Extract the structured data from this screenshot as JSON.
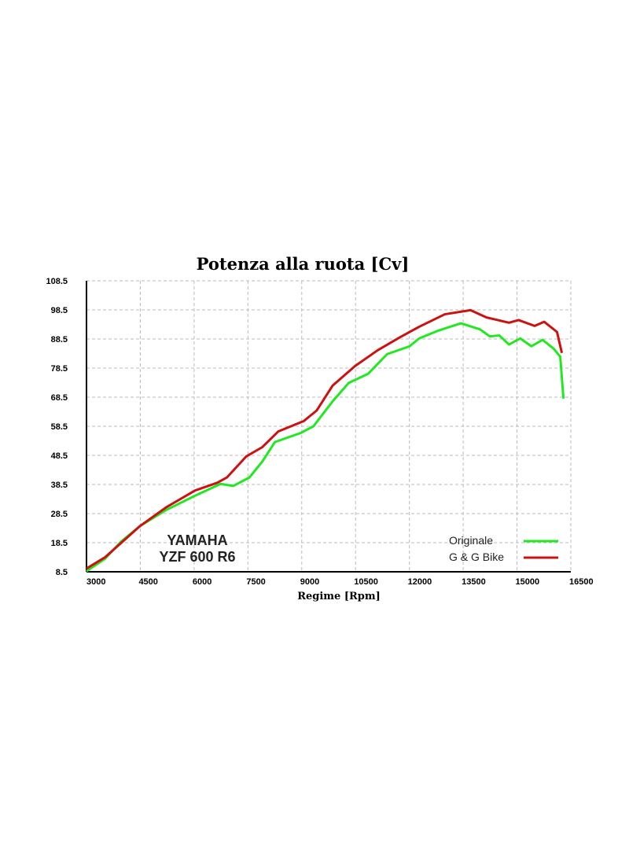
{
  "chart_data": {
    "type": "line",
    "title": "Potenza alla ruota [Cv]",
    "xlabel": "Regime [Rpm]",
    "ylabel": "",
    "xlim": [
      3000,
      16500
    ],
    "ylim": [
      8.5,
      108.5
    ],
    "xticks": [
      "3000",
      "4500",
      "6000",
      "7500",
      "9000",
      "10500",
      "12000",
      "13500",
      "15000",
      "16500"
    ],
    "yticks": [
      "108.5",
      "98.5",
      "88.5",
      "78.5",
      "68.5",
      "58.5",
      "48.5",
      "38.5",
      "28.5",
      "18.5",
      "8.5"
    ],
    "grid": true,
    "legend_position": "bottom-right",
    "annotation": [
      "YAMAHA",
      "YZF 600 R6"
    ],
    "series": [
      {
        "name": "Originale",
        "color": "#22e822",
        "points": [
          [
            3000,
            8.7
          ],
          [
            3518,
            13.0
          ],
          [
            3965,
            18.9
          ],
          [
            4500,
            24.3
          ],
          [
            5216,
            29.7
          ],
          [
            6020,
            34.6
          ],
          [
            6735,
            38.7
          ],
          [
            7093,
            38.0
          ],
          [
            7540,
            40.9
          ],
          [
            7896,
            46.3
          ],
          [
            8254,
            53.1
          ],
          [
            8969,
            56.2
          ],
          [
            9326,
            58.5
          ],
          [
            9862,
            67.1
          ],
          [
            10309,
            73.4
          ],
          [
            10845,
            76.5
          ],
          [
            11381,
            83.3
          ],
          [
            12006,
            86.0
          ],
          [
            12274,
            88.7
          ],
          [
            12810,
            91.4
          ],
          [
            13436,
            93.9
          ],
          [
            13972,
            91.8
          ],
          [
            14240,
            89.4
          ],
          [
            14508,
            89.7
          ],
          [
            14776,
            86.6
          ],
          [
            15089,
            88.7
          ],
          [
            15401,
            86.0
          ],
          [
            15714,
            88.2
          ],
          [
            16027,
            85.1
          ],
          [
            16205,
            82.4
          ],
          [
            16295,
            68.0
          ]
        ]
      },
      {
        "name": "G & G Bike",
        "color": "#cc1111",
        "points": [
          [
            3000,
            9.6
          ],
          [
            3518,
            13.5
          ],
          [
            3965,
            18.4
          ],
          [
            4500,
            24.3
          ],
          [
            5216,
            30.6
          ],
          [
            6020,
            36.4
          ],
          [
            6645,
            39.1
          ],
          [
            6913,
            40.9
          ],
          [
            7450,
            48.1
          ],
          [
            7896,
            51.3
          ],
          [
            8343,
            56.7
          ],
          [
            9058,
            60.3
          ],
          [
            9415,
            63.9
          ],
          [
            9862,
            72.5
          ],
          [
            10487,
            79.2
          ],
          [
            11113,
            84.6
          ],
          [
            11738,
            89.1
          ],
          [
            12274,
            92.7
          ],
          [
            12989,
            97.0
          ],
          [
            13704,
            98.4
          ],
          [
            14150,
            95.9
          ],
          [
            14776,
            94.1
          ],
          [
            15044,
            95.0
          ],
          [
            15491,
            93.0
          ],
          [
            15759,
            94.4
          ],
          [
            16116,
            90.9
          ],
          [
            16250,
            83.7
          ]
        ]
      }
    ]
  }
}
